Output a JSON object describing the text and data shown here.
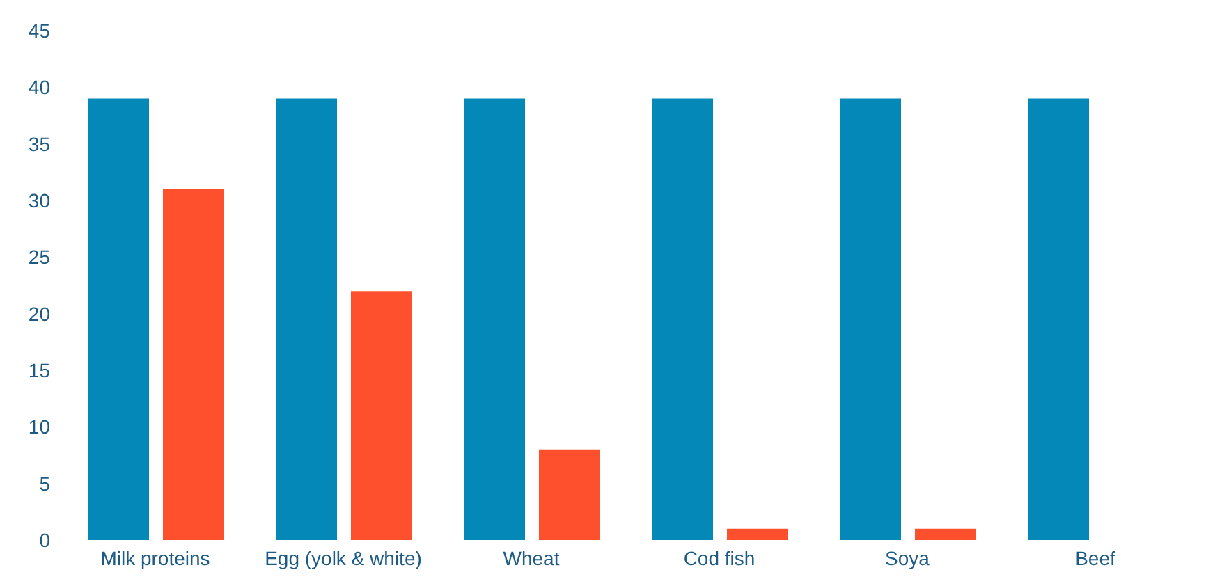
{
  "chart_data": {
    "type": "bar",
    "categories": [
      "Milk proteins",
      "Egg (yolk & white)",
      "Wheat",
      "Cod fish",
      "Soya",
      "Beef"
    ],
    "series": [
      {
        "color": "#0388b8",
        "values": [
          39,
          39,
          39,
          39,
          39,
          39
        ]
      },
      {
        "color": "#ff502d",
        "values": [
          31,
          22,
          8,
          1,
          1,
          null
        ]
      }
    ],
    "ylim": [
      0,
      45
    ],
    "yticks": [
      0,
      5,
      10,
      15,
      20,
      25,
      30,
      35,
      40,
      45
    ],
    "grid": false,
    "legend": false
  }
}
